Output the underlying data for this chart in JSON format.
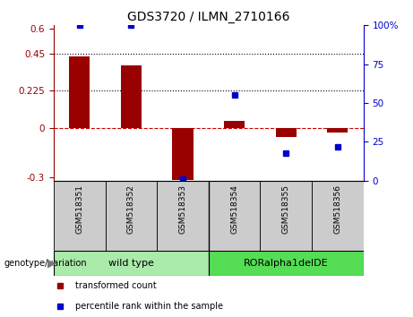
{
  "title": "GDS3720 / ILMN_2710166",
  "categories": [
    "GSM518351",
    "GSM518352",
    "GSM518353",
    "GSM518354",
    "GSM518355",
    "GSM518356"
  ],
  "bar_values": [
    0.43,
    0.38,
    -0.315,
    0.04,
    -0.055,
    -0.03
  ],
  "scatter_values": [
    100,
    100,
    1,
    55,
    18,
    22
  ],
  "ylim_left": [
    -0.32,
    0.62
  ],
  "ylim_right": [
    0,
    100
  ],
  "yticks_left": [
    -0.3,
    0,
    0.225,
    0.45,
    0.6
  ],
  "ytick_labels_left": [
    "-0.3",
    "0",
    "0.225",
    "0.45",
    "0.6"
  ],
  "yticks_right": [
    0,
    25,
    50,
    75,
    100
  ],
  "ytick_labels_right": [
    "0",
    "25",
    "50",
    "75",
    "100%"
  ],
  "hlines": [
    0.225,
    0.45
  ],
  "bar_color": "#990000",
  "scatter_color": "#0000cc",
  "zero_line_color": "#cc0000",
  "genotype_groups": [
    {
      "label": "wild type",
      "start": 0,
      "end": 3,
      "color": "#aaeaaa"
    },
    {
      "label": "RORalpha1delDE",
      "start": 3,
      "end": 6,
      "color": "#55dd55"
    }
  ],
  "legend_items": [
    {
      "label": "transformed count",
      "color": "#990000"
    },
    {
      "label": "percentile rank within the sample",
      "color": "#0000cc"
    }
  ],
  "genotype_label": "genotype/variation",
  "background_color": "#ffffff",
  "plot_bg": "#ffffff",
  "xlabel_bg": "#cccccc",
  "tick_label_fontsize": 7.5,
  "title_fontsize": 10,
  "bar_width": 0.4
}
